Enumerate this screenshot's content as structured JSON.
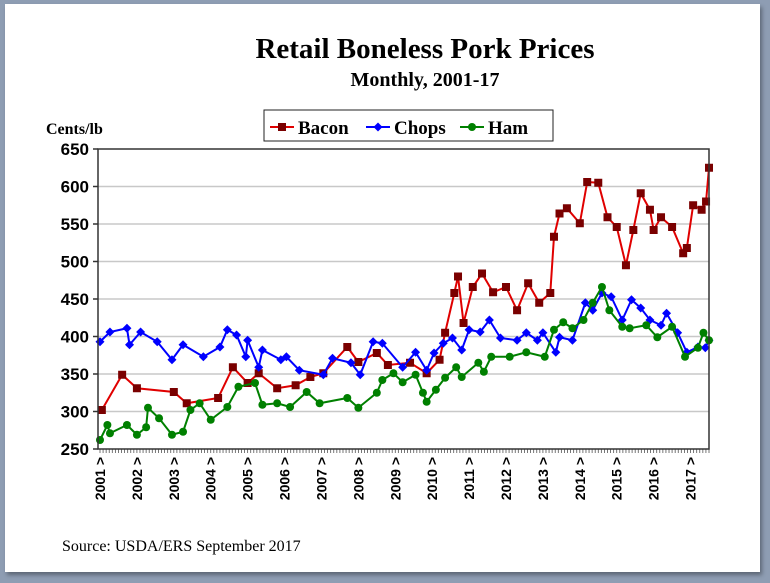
{
  "chart_data": {
    "type": "line",
    "title": "Retail Boneless Pork Prices",
    "subtitle": "Monthly, 2001-17",
    "ylabel": "Cents/lb",
    "xlabel": "",
    "ylim": [
      250,
      650
    ],
    "yticks": [
      "250",
      "300",
      "350",
      "400",
      "450",
      "500",
      "550",
      "600",
      "650"
    ],
    "xlim": [
      2001,
      2017.5
    ],
    "xticks": [
      "2001 >",
      "2002 >",
      "2003 >",
      "2004 >",
      "2005 >",
      "2006 >",
      "2007 >",
      "2008 >",
      "2009 >",
      "2010 >",
      "2011 >",
      "2012 >",
      "2013 >",
      "2014 >",
      "2015 >",
      "2016 >",
      "2017 >"
    ],
    "grid": true,
    "legend_position": "top-center",
    "source": "Source: USDA/ERS   September 2017",
    "series": [
      {
        "name": "Bacon",
        "line_color": "#e00000",
        "marker_color": "#7a0000",
        "marker": "square",
        "x": [
          2001.05,
          2001.6,
          2002.0,
          2003.0,
          2003.35,
          2004.2,
          2004.6,
          2005.0,
          2005.3,
          2005.8,
          2006.3,
          2006.7,
          2007.05,
          2007.7,
          2008.0,
          2008.5,
          2008.8,
          2009.4,
          2009.85,
          2010.2,
          2010.35,
          2010.6,
          2010.7,
          2010.85,
          2011.1,
          2011.35,
          2011.65,
          2012.0,
          2012.3,
          2012.6,
          2012.9,
          2013.2,
          2013.3,
          2013.45,
          2013.65,
          2014.0,
          2014.2,
          2014.5,
          2014.75,
          2015.0,
          2015.25,
          2015.45,
          2015.65,
          2015.9,
          2016.0,
          2016.2,
          2016.5,
          2016.8,
          2016.9,
          2017.07,
          2017.3,
          2017.42,
          2017.5
        ],
        "y": [
          302,
          349,
          331,
          326,
          311,
          318,
          359,
          338,
          351,
          331,
          335,
          346,
          351,
          386,
          366,
          378,
          362,
          365,
          351,
          369,
          405,
          458,
          480,
          418,
          466,
          484,
          459,
          466,
          435,
          471,
          445,
          458,
          533,
          564,
          571,
          551,
          606,
          605,
          559,
          546,
          495,
          542,
          591,
          569,
          542,
          559,
          546,
          511,
          518,
          575,
          569,
          580,
          625
        ]
      },
      {
        "name": "Chops",
        "line_color": "#0000ff",
        "marker_color": "#0000ff",
        "marker": "diamond",
        "x": [
          2001.0,
          2001.27,
          2001.73,
          2001.8,
          2002.1,
          2002.55,
          2002.95,
          2003.25,
          2003.8,
          2004.25,
          2004.45,
          2004.7,
          2004.95,
          2005.0,
          2005.3,
          2005.4,
          2005.9,
          2006.05,
          2006.4,
          2007.05,
          2007.3,
          2007.8,
          2008.05,
          2008.4,
          2008.65,
          2009.2,
          2009.55,
          2009.85,
          2010.05,
          2010.3,
          2010.55,
          2010.8,
          2011.0,
          2011.3,
          2011.55,
          2011.85,
          2012.3,
          2012.55,
          2012.85,
          2013.0,
          2013.35,
          2013.45,
          2013.8,
          2014.15,
          2014.35,
          2014.6,
          2014.85,
          2015.15,
          2015.4,
          2015.65,
          2015.9,
          2016.2,
          2016.35,
          2016.65,
          2016.9,
          2017.2,
          2017.4,
          2017.5
        ],
        "y": [
          393,
          406,
          411,
          389,
          406,
          393,
          369,
          389,
          373,
          386,
          409,
          402,
          373,
          395,
          359,
          382,
          369,
          373,
          355,
          349,
          371,
          365,
          349,
          393,
          391,
          359,
          379,
          355,
          378,
          391,
          398,
          382,
          409,
          406,
          422,
          398,
          395,
          405,
          395,
          405,
          379,
          399,
          395,
          445,
          435,
          458,
          453,
          422,
          449,
          438,
          422,
          415,
          431,
          405,
          379,
          386,
          385,
          395
        ]
      },
      {
        "name": "Ham",
        "line_color": "#008000",
        "marker_color": "#008000",
        "marker": "circle",
        "x": [
          2001.0,
          2001.2,
          2001.27,
          2001.73,
          2002.0,
          2002.25,
          2002.3,
          2002.6,
          2002.95,
          2003.25,
          2003.45,
          2003.7,
          2004.0,
          2004.45,
          2004.75,
          2005.2,
          2005.4,
          2005.8,
          2006.15,
          2006.6,
          2006.95,
          2007.7,
          2008.0,
          2008.5,
          2008.65,
          2008.95,
          2009.2,
          2009.55,
          2009.75,
          2009.85,
          2010.1,
          2010.35,
          2010.65,
          2010.8,
          2011.25,
          2011.4,
          2011.6,
          2012.1,
          2012.55,
          2013.05,
          2013.3,
          2013.55,
          2013.8,
          2014.1,
          2014.35,
          2014.6,
          2014.8,
          2015.15,
          2015.35,
          2015.8,
          2016.1,
          2016.5,
          2016.85,
          2017.2,
          2017.35,
          2017.5
        ],
        "y": [
          262,
          282,
          271,
          282,
          269,
          279,
          305,
          291,
          269,
          273,
          302,
          311,
          289,
          306,
          333,
          338,
          309,
          311,
          306,
          326,
          311,
          318,
          305,
          325,
          342,
          351,
          339,
          349,
          325,
          313,
          329,
          345,
          359,
          346,
          365,
          353,
          373,
          373,
          379,
          373,
          409,
          419,
          411,
          422,
          445,
          466,
          435,
          413,
          411,
          415,
          399,
          413,
          373,
          385,
          405,
          395
        ]
      }
    ]
  }
}
